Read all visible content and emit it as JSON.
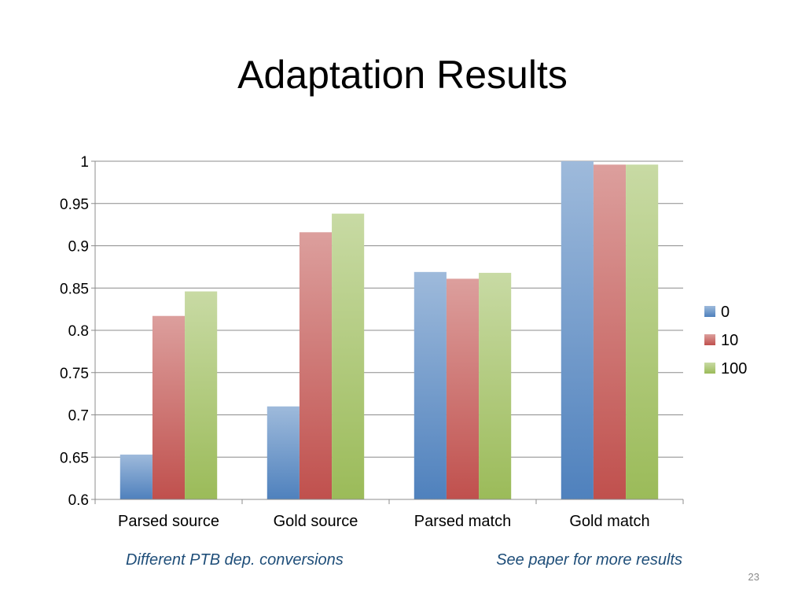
{
  "slide": {
    "title": "Adaptation Results",
    "note_left": "Different PTB dep. conversions",
    "note_right": "See paper for more results",
    "page_number": "23"
  },
  "chart_data": {
    "type": "bar",
    "title": "",
    "xlabel": "",
    "ylabel": "",
    "categories": [
      "Parsed source",
      "Gold source",
      "Parsed match",
      "Gold match"
    ],
    "series": [
      {
        "name": "0",
        "values": [
          0.653,
          0.71,
          0.869,
          1.0
        ],
        "color": "#4f81bd"
      },
      {
        "name": "10",
        "values": [
          0.817,
          0.916,
          0.861,
          0.996
        ],
        "color": "#c0504d"
      },
      {
        "name": "100",
        "values": [
          0.846,
          0.938,
          0.868,
          0.996
        ],
        "color": "#9bbb59"
      }
    ],
    "ylim": [
      0.6,
      1.0
    ],
    "yticks": [
      "0.6",
      "0.65",
      "0.7",
      "0.75",
      "0.8",
      "0.85",
      "0.9",
      "0.95",
      "1"
    ],
    "grid": true,
    "legend_position": "right"
  }
}
